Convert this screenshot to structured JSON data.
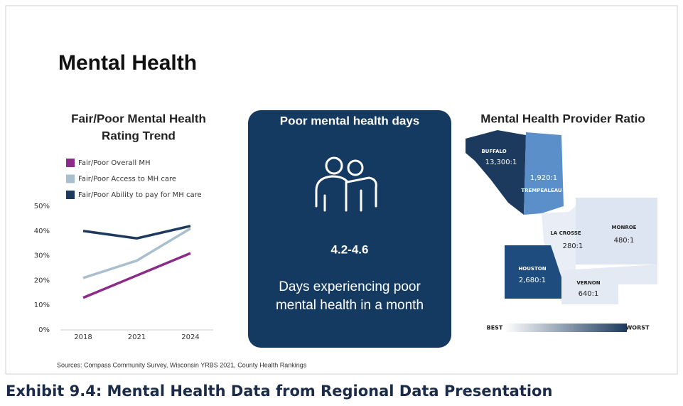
{
  "title": "Mental Health",
  "chart_data": {
    "type": "line",
    "title": [
      "Fair/Poor Mental Health",
      "Rating Trend"
    ],
    "categories": [
      "2018",
      "2021",
      "2024"
    ],
    "series": [
      {
        "name": "Fair/Poor Overall MH",
        "color": "#8b2a87",
        "values": [
          13,
          22,
          31
        ]
      },
      {
        "name": "Fair/Poor Access to MH care",
        "color": "#a9bfce",
        "values": [
          21,
          28,
          41
        ]
      },
      {
        "name": "Fair/Poor Ability to pay for MH care",
        "color": "#1c3a5e",
        "values": [
          40,
          37,
          42
        ]
      }
    ],
    "ylim": [
      0,
      50
    ],
    "yticks": [
      {
        "value": 0,
        "label": "0%"
      },
      {
        "value": 10,
        "label": "10%"
      },
      {
        "value": 20,
        "label": "20%"
      },
      {
        "value": 30,
        "label": "30%"
      },
      {
        "value": 40,
        "label": "40%"
      },
      {
        "value": 50,
        "label": "50%"
      }
    ],
    "grid": false,
    "legend": "top-left"
  },
  "card": {
    "title": "Poor mental health days",
    "value": "4.2-4.6",
    "caption": [
      "Days experiencing poor",
      "mental health in a month"
    ]
  },
  "map": {
    "title": "Mental Health Provider Ratio",
    "regions": [
      {
        "name": "BUFFALO",
        "ratio": "13,300:1"
      },
      {
        "name": "TREMPEALEAU",
        "ratio": "1,920:1"
      },
      {
        "name": "LA CROSSE",
        "ratio": "280:1"
      },
      {
        "name": "MONROE",
        "ratio": "480:1"
      },
      {
        "name": "HOUSTON",
        "ratio": "2,680:1"
      },
      {
        "name": "VERNON",
        "ratio": "640:1"
      }
    ],
    "legend_low": "BEST",
    "legend_high": "WORST"
  },
  "sources": "Sources: Compass Community Survey, Wisconsin YRBS 2021, County Health Rankings",
  "caption": "Exhibit 9.4: Mental Health Data from Regional Data Presentation"
}
